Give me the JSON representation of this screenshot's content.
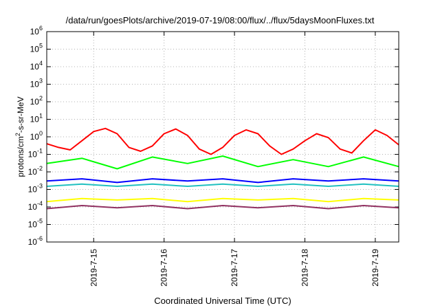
{
  "chart_data": {
    "type": "line",
    "title": "/data/run/goesPlots/archive/2019-07-19/08:00/flux/../flux/5daysMoonFluxes.txt",
    "xlabel": "Coordinated Universal Time (UTC)",
    "ylabel": "protons/cm2-s-sr-MeV",
    "y_scale": "log",
    "ylim_exponents": [
      -6,
      6
    ],
    "y_tick_labels": [
      "10-6",
      "10-5",
      "10-4",
      "10-3",
      "10-2",
      "10-1",
      "100",
      "101",
      "102",
      "103",
      "104",
      "105",
      "106"
    ],
    "x_range": [
      "2019-07-14 08:00",
      "2019-07-19 08:00"
    ],
    "x_tick_labels": [
      "2019-7-15",
      "2019-7-16",
      "2019-7-17",
      "2019-7-18",
      "2019-7-19"
    ],
    "grid": true,
    "series": [
      {
        "color": "#ff0000",
        "x": [
          "2019-07-14 08:00",
          "2019-07-14 12:00",
          "2019-07-14 16:00",
          "2019-07-14 20:00",
          "2019-07-15 00:00",
          "2019-07-15 04:00",
          "2019-07-15 08:00",
          "2019-07-15 12:00",
          "2019-07-15 16:00",
          "2019-07-15 20:00",
          "2019-07-16 00:00",
          "2019-07-16 04:00",
          "2019-07-16 08:00",
          "2019-07-16 12:00",
          "2019-07-16 16:00",
          "2019-07-16 20:00",
          "2019-07-17 00:00",
          "2019-07-17 04:00",
          "2019-07-17 08:00",
          "2019-07-17 12:00",
          "2019-07-17 16:00",
          "2019-07-17 20:00",
          "2019-07-18 00:00",
          "2019-07-18 04:00",
          "2019-07-18 08:00",
          "2019-07-18 12:00",
          "2019-07-18 16:00",
          "2019-07-18 20:00",
          "2019-07-19 00:00",
          "2019-07-19 04:00",
          "2019-07-19 08:00"
        ],
        "y": [
          0.4,
          0.25,
          0.18,
          0.6,
          2.0,
          3.0,
          1.5,
          0.25,
          0.15,
          0.3,
          1.5,
          2.8,
          1.2,
          0.2,
          0.1,
          0.25,
          1.2,
          2.5,
          1.5,
          0.3,
          0.1,
          0.2,
          0.6,
          1.5,
          0.9,
          0.2,
          0.12,
          0.6,
          2.5,
          1.2,
          0.35
        ]
      },
      {
        "color": "#00ff00",
        "x": [
          "2019-07-14 08:00",
          "2019-07-14 20:00",
          "2019-07-15 08:00",
          "2019-07-15 20:00",
          "2019-07-16 08:00",
          "2019-07-16 20:00",
          "2019-07-17 08:00",
          "2019-07-17 20:00",
          "2019-07-18 08:00",
          "2019-07-18 20:00",
          "2019-07-19 08:00"
        ],
        "y": [
          0.03,
          0.06,
          0.015,
          0.07,
          0.03,
          0.08,
          0.02,
          0.05,
          0.02,
          0.07,
          0.02
        ]
      },
      {
        "color": "#0000ff",
        "x": [
          "2019-07-14 08:00",
          "2019-07-14 20:00",
          "2019-07-15 08:00",
          "2019-07-15 20:00",
          "2019-07-16 08:00",
          "2019-07-16 20:00",
          "2019-07-17 08:00",
          "2019-07-17 20:00",
          "2019-07-18 08:00",
          "2019-07-18 20:00",
          "2019-07-19 08:00"
        ],
        "y": [
          0.003,
          0.004,
          0.0025,
          0.004,
          0.003,
          0.004,
          0.0025,
          0.004,
          0.003,
          0.004,
          0.003
        ]
      },
      {
        "color": "#20c0c0",
        "x": [
          "2019-07-14 08:00",
          "2019-07-14 20:00",
          "2019-07-15 08:00",
          "2019-07-15 20:00",
          "2019-07-16 08:00",
          "2019-07-16 20:00",
          "2019-07-17 08:00",
          "2019-07-17 20:00",
          "2019-07-18 08:00",
          "2019-07-18 20:00",
          "2019-07-19 08:00"
        ],
        "y": [
          0.0015,
          0.002,
          0.0015,
          0.002,
          0.0015,
          0.002,
          0.0015,
          0.002,
          0.0015,
          0.002,
          0.0015
        ]
      },
      {
        "color": "#ffff00",
        "x": [
          "2019-07-14 08:00",
          "2019-07-14 20:00",
          "2019-07-15 08:00",
          "2019-07-15 20:00",
          "2019-07-16 08:00",
          "2019-07-16 20:00",
          "2019-07-17 08:00",
          "2019-07-17 20:00",
          "2019-07-18 08:00",
          "2019-07-18 20:00",
          "2019-07-19 08:00"
        ],
        "y": [
          0.0002,
          0.0003,
          0.00025,
          0.0003,
          0.0002,
          0.0003,
          0.00025,
          0.0003,
          0.0002,
          0.0003,
          0.00025
        ]
      },
      {
        "color": "#903060",
        "x": [
          "2019-07-14 08:00",
          "2019-07-14 20:00",
          "2019-07-15 08:00",
          "2019-07-15 20:00",
          "2019-07-16 08:00",
          "2019-07-16 20:00",
          "2019-07-17 08:00",
          "2019-07-17 20:00",
          "2019-07-18 08:00",
          "2019-07-18 20:00",
          "2019-07-19 08:00"
        ],
        "y": [
          8e-05,
          0.00012,
          9e-05,
          0.00012,
          8e-05,
          0.00012,
          9e-05,
          0.00012,
          8e-05,
          0.00012,
          9e-05
        ]
      }
    ]
  }
}
